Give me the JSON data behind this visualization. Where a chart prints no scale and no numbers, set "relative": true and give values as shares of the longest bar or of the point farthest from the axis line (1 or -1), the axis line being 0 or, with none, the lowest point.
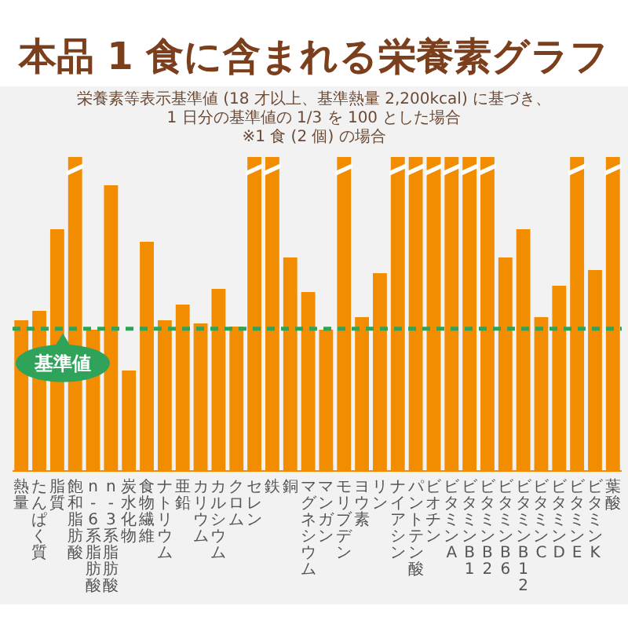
{
  "chart_data": {
    "type": "bar",
    "title": "本品 1 食に含まれる栄養素グラフ",
    "subtitle": "栄養素等表示基準値 (18 才以上、基準熱量 2,200kcal) に基づき、1 日分の基準値の 1/3 を 100 とした場合\n※1 食 (2 個) の場合",
    "categories": [
      "熱量",
      "たんぱく質",
      "脂質",
      "飽和脂肪酸",
      "n-6系脂肪酸",
      "n-3系脂肪酸",
      "炭水化物",
      "食物繊維",
      "ナトリウム",
      "亜鉛",
      "カリウム",
      "カルシウム",
      "クロム",
      "セレン",
      "鉄",
      "銅",
      "マグネシウム",
      "マンガン",
      "モリブデン",
      "ヨウ素",
      "リン",
      "ナイアシン",
      "パントテン酸",
      "ビオチン",
      "ビタミンA",
      "ビタミンB1",
      "ビタミンB2",
      "ビタミンB6",
      "ビタミンB12",
      "ビタミンC",
      "ビタミンD",
      "ビタミンE",
      "ビタミンK",
      "葉酸"
    ],
    "values": [
      0.48,
      0.51,
      0.77,
      1,
      0.45,
      0.91,
      0.32,
      0.73,
      0.48,
      0.53,
      0.47,
      0.58,
      0.46,
      1,
      1,
      0.68,
      0.57,
      0.45,
      1,
      0.49,
      0.63,
      1,
      1,
      1,
      1,
      1,
      1,
      0.68,
      0.77,
      0.49,
      0.59,
      1,
      0.64,
      1
    ],
    "color": "#f28c00",
    "relative": true,
    "ref_lines": [
      {
        "axis": "y",
        "value": 0.453,
        "label": "基準値",
        "color": "#2fa35a",
        "line_style": "dashed"
      }
    ]
  }
}
